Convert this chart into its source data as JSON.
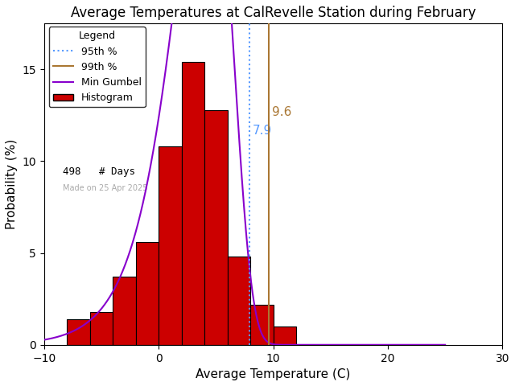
{
  "title": "Average Temperatures at CalRevelle Station during February",
  "xlabel": "Average Temperature (C)",
  "ylabel": "Probability (%)",
  "xlim": [
    -10,
    30
  ],
  "ylim": [
    0,
    17.5
  ],
  "xticks": [
    -10,
    0,
    10,
    20,
    30
  ],
  "yticks": [
    0,
    5,
    10,
    15
  ],
  "bin_edges": [
    -8,
    -6,
    -4,
    -2,
    0,
    2,
    4,
    6,
    8,
    10,
    12
  ],
  "bin_heights": [
    1.4,
    1.8,
    3.7,
    5.6,
    10.8,
    15.4,
    12.8,
    4.8,
    2.2,
    1.0,
    0.0
  ],
  "percentile_95": 7.9,
  "percentile_99": 9.6,
  "n_days": 498,
  "made_on": "Made on 25 Apr 2025",
  "bar_color": "#cc0000",
  "bar_edge_color": "#000000",
  "line_color_gumbel": "#8800cc",
  "line_color_95": "#5599ff",
  "line_color_99": "#aa7733",
  "bg_color": "#ffffff",
  "title_fontsize": 12,
  "axis_fontsize": 11,
  "tick_fontsize": 10,
  "watermark_color": "#aaaaaa",
  "gumbel_mu": 4.2,
  "gumbel_beta": 2.5
}
